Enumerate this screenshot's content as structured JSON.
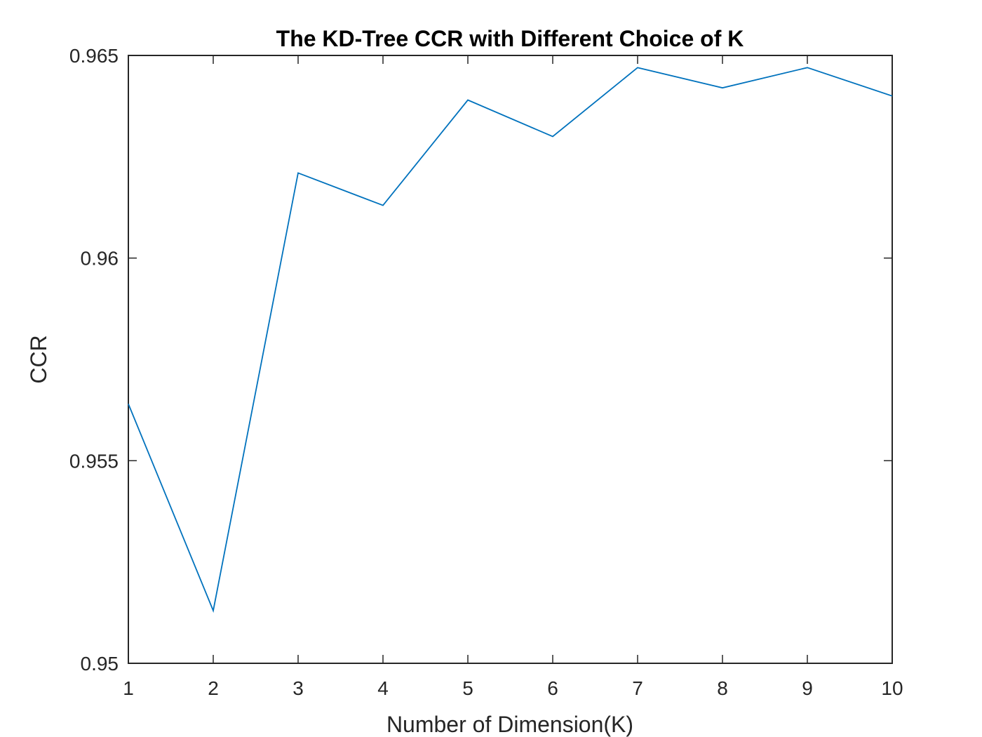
{
  "chart_data": {
    "type": "line",
    "title": "The KD-Tree CCR with Different Choice of K",
    "xlabel": "Number of Dimension(K)",
    "ylabel": "CCR",
    "x": [
      1,
      2,
      3,
      4,
      5,
      6,
      7,
      8,
      9,
      10
    ],
    "series": [
      {
        "values": [
          0.9564,
          0.9513,
          0.9621,
          0.9613,
          0.9639,
          0.963,
          0.9647,
          0.9642,
          0.9647,
          0.964
        ]
      }
    ],
    "xlim": [
      1,
      10
    ],
    "ylim": [
      0.95,
      0.965
    ],
    "xticks": [
      "1",
      "2",
      "3",
      "4",
      "5",
      "6",
      "7",
      "8",
      "9",
      "10"
    ],
    "yticks": [
      "0.95",
      "0.955",
      "0.96",
      "0.965"
    ],
    "grid": false,
    "line_color": "#0072BD",
    "axis_color": "#262626"
  }
}
